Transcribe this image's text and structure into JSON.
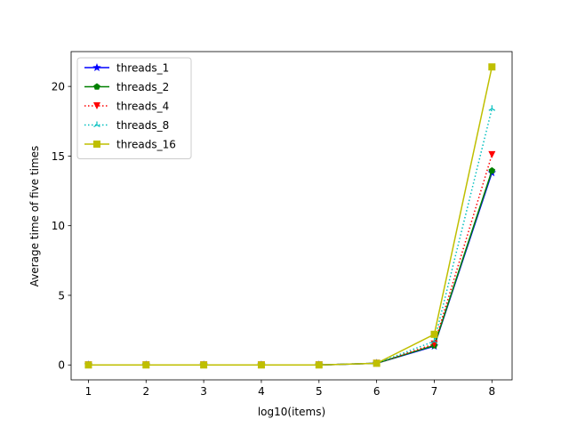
{
  "chart_data": {
    "type": "line",
    "title": "",
    "xlabel": "log10(items)",
    "ylabel": "Average time of five times",
    "x": [
      1,
      2,
      3,
      4,
      5,
      6,
      7,
      8
    ],
    "xlim": [
      0.7,
      8.35
    ],
    "ylim": [
      -1.07,
      22.5
    ],
    "xticks": [
      1,
      2,
      3,
      4,
      5,
      6,
      7,
      8
    ],
    "yticks": [
      0,
      5,
      10,
      15,
      20
    ],
    "grid": false,
    "legend_position": "top-left",
    "series": [
      {
        "name": "threads_1",
        "color": "#0000ff",
        "style": "solid",
        "marker": "star",
        "values": [
          0.0,
          0.0,
          0.0,
          0.0,
          0.0,
          0.12,
          1.35,
          13.8
        ]
      },
      {
        "name": "threads_2",
        "color": "#008000",
        "style": "solid",
        "marker": "pentagon",
        "values": [
          0.0,
          0.0,
          0.0,
          0.0,
          0.0,
          0.12,
          1.4,
          13.95
        ]
      },
      {
        "name": "threads_4",
        "color": "#ff0000",
        "style": "dotted",
        "marker": "triangle-down",
        "values": [
          0.0,
          0.0,
          0.0,
          0.0,
          0.0,
          0.12,
          1.5,
          15.1
        ]
      },
      {
        "name": "threads_8",
        "color": "#00bfbf",
        "style": "dotted",
        "marker": "tri-up",
        "values": [
          0.0,
          0.0,
          0.0,
          0.0,
          0.0,
          0.12,
          1.7,
          18.4
        ]
      },
      {
        "name": "threads_16",
        "color": "#bfbf00",
        "style": "solid",
        "marker": "square",
        "values": [
          0.0,
          0.0,
          0.0,
          0.0,
          0.0,
          0.12,
          2.2,
          21.4
        ]
      }
    ]
  }
}
